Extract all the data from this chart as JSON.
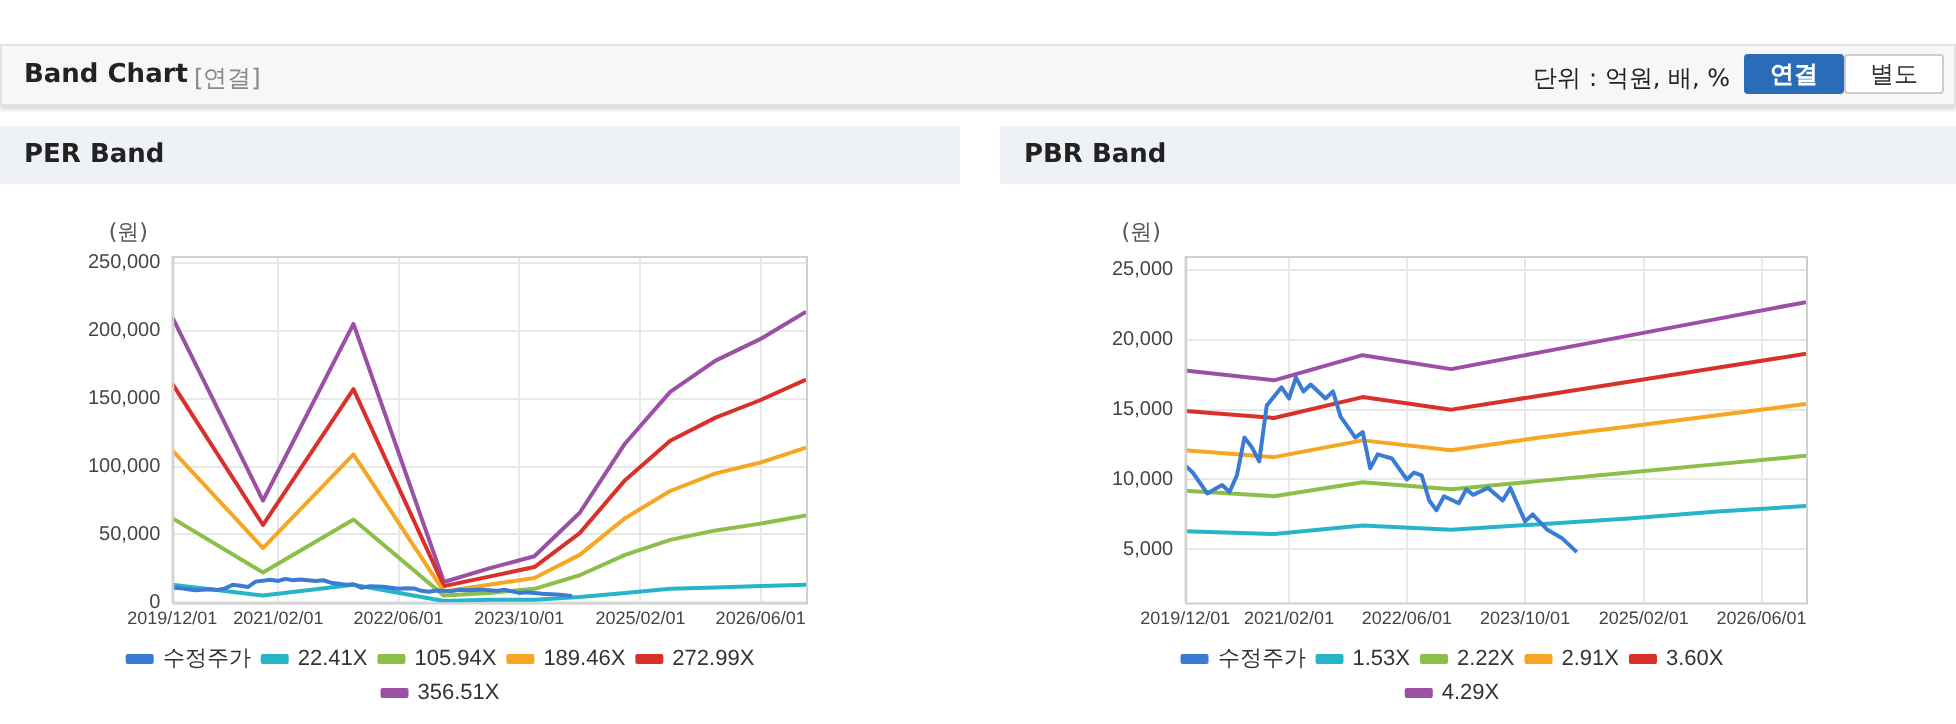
{
  "chart_data": [
    {
      "type": "line",
      "title": "PER Band",
      "ylabel": "(원)",
      "annotations": [
        "Band Chart",
        "[연결]",
        "단위 : 억원, 배, %",
        "연결",
        "별도"
      ],
      "xlim": [
        "2019-12-01",
        "2026-12-01"
      ],
      "xticks": [
        {
          "value": "2019-12-01",
          "label": "2019/12/01"
        },
        {
          "value": "2021-02-01",
          "label": "2021/02/01"
        },
        {
          "value": "2022-06-01",
          "label": "2022/06/01"
        },
        {
          "value": "2023-10-01",
          "label": "2023/10/01"
        },
        {
          "value": "2025-02-01",
          "label": "2025/02/01"
        },
        {
          "value": "2026-06-01",
          "label": "2026/06/01"
        }
      ],
      "ylim": [
        0,
        255000
      ],
      "yticks": [
        0,
        {
          "value": 50000,
          "label": "50,000"
        },
        {
          "value": 100000,
          "label": "100,000"
        },
        {
          "value": 150000,
          "label": "150,000"
        },
        {
          "value": 200000,
          "label": "200,000"
        },
        {
          "value": 250000,
          "label": "250,000"
        }
      ],
      "grid": true,
      "legend": "bottom",
      "marker": "none",
      "line_style": "solid",
      "series": [
        {
          "name": "수정주가",
          "color": "#3a7bd5",
          "x": [
            "2019-12",
            "2020-01",
            "2020-03",
            "2020-05",
            "2020-06",
            "2020-07",
            "2020-08",
            "2020-09",
            "2020-10",
            "2020-11",
            "2021-01",
            "2021-02",
            "2021-03",
            "2021-04",
            "2021-05",
            "2021-07",
            "2021-08",
            "2021-09",
            "2021-11",
            "2021-12",
            "2022-01",
            "2022-02",
            "2022-04",
            "2022-06",
            "2022-07",
            "2022-08",
            "2022-09",
            "2022-10",
            "2022-11",
            "2023-01",
            "2023-02",
            "2023-03",
            "2023-05",
            "2023-07",
            "2023-08",
            "2023-10",
            "2023-11",
            "2024-01",
            "2024-03",
            "2024-05"
          ],
          "values": [
            11000,
            10500,
            9000,
            9600,
            9100,
            10300,
            13000,
            12300,
            11300,
            15300,
            16600,
            15800,
            17300,
            16300,
            16800,
            15800,
            16300,
            14500,
            13000,
            13400,
            10800,
            11800,
            11500,
            10000,
            10500,
            10300,
            8500,
            7800,
            8800,
            8300,
            9300,
            8900,
            9400,
            8500,
            9400,
            7000,
            7500,
            6400,
            5800,
            4800
          ]
        },
        {
          "name": "22.41X",
          "color": "#26b5c8",
          "x": [
            "2019-12",
            "2020-12",
            "2021-12",
            "2022-12",
            "2023-06",
            "2023-12",
            "2024-06",
            "2024-12",
            "2025-06",
            "2025-12",
            "2026-06",
            "2026-12"
          ],
          "values": [
            13000,
            5000,
            13000,
            1000,
            2000,
            2000,
            4000,
            7000,
            10000,
            11000,
            12000,
            13000
          ]
        },
        {
          "name": "105.94X",
          "color": "#8cbf4a",
          "x": [
            "2019-12",
            "2020-12",
            "2021-12",
            "2022-12",
            "2023-06",
            "2023-12",
            "2024-06",
            "2024-12",
            "2025-06",
            "2025-12",
            "2026-06",
            "2026-12"
          ],
          "values": [
            62000,
            22000,
            61000,
            5000,
            7000,
            10000,
            20000,
            35000,
            46000,
            53000,
            58000,
            64000
          ]
        },
        {
          "name": "189.46X",
          "color": "#f5a623",
          "x": [
            "2019-12",
            "2020-12",
            "2021-12",
            "2022-12",
            "2023-06",
            "2023-12",
            "2024-06",
            "2024-12",
            "2025-06",
            "2025-12",
            "2026-06",
            "2026-12"
          ],
          "values": [
            112000,
            40000,
            109000,
            8000,
            13000,
            18000,
            35000,
            62000,
            82000,
            95000,
            103000,
            114000
          ]
        },
        {
          "name": "272.99X",
          "color": "#d9312a",
          "x": [
            "2019-12",
            "2020-12",
            "2021-12",
            "2022-12",
            "2023-06",
            "2023-12",
            "2024-06",
            "2024-12",
            "2025-06",
            "2025-12",
            "2026-06",
            "2026-12"
          ],
          "values": [
            161000,
            57000,
            157000,
            12000,
            19000,
            26000,
            51000,
            90000,
            119000,
            136000,
            149000,
            164000
          ]
        },
        {
          "name": "356.51X",
          "color": "#9b4fa5",
          "x": [
            "2019-12",
            "2020-12",
            "2021-12",
            "2022-12",
            "2023-06",
            "2023-12",
            "2024-06",
            "2024-12",
            "2025-06",
            "2025-12",
            "2026-06",
            "2026-12"
          ],
          "values": [
            210000,
            75000,
            205000,
            15000,
            25000,
            34000,
            66000,
            117000,
            155000,
            178000,
            194000,
            214000
          ]
        }
      ]
    },
    {
      "type": "line",
      "title": "PBR Band",
      "ylabel": "(원)",
      "xlim": [
        "2019-12-01",
        "2026-12-01"
      ],
      "xticks": [
        {
          "value": "2019-12-01",
          "label": "2019/12/01"
        },
        {
          "value": "2021-02-01",
          "label": "2021/02/01"
        },
        {
          "value": "2022-06-01",
          "label": "2022/06/01"
        },
        {
          "value": "2023-10-01",
          "label": "2023/10/01"
        },
        {
          "value": "2025-02-01",
          "label": "2025/02/01"
        },
        {
          "value": "2026-06-01",
          "label": "2026/06/01"
        }
      ],
      "ylim": [
        1200,
        26000
      ],
      "yticks": [
        {
          "value": 5000,
          "label": "5,000"
        },
        {
          "value": 10000,
          "label": "10,000"
        },
        {
          "value": 15000,
          "label": "15,000"
        },
        {
          "value": 20000,
          "label": "20,000"
        },
        {
          "value": 25000,
          "label": "25,000"
        }
      ],
      "grid": true,
      "legend": "bottom",
      "marker": "none",
      "line_style": "solid",
      "series": [
        {
          "name": "수정주가",
          "color": "#3a7bd5",
          "x": [
            "2019-12",
            "2020-01",
            "2020-03",
            "2020-05",
            "2020-06",
            "2020-07",
            "2020-08",
            "2020-09",
            "2020-10",
            "2020-11",
            "2021-01",
            "2021-02",
            "2021-03",
            "2021-04",
            "2021-05",
            "2021-07",
            "2021-08",
            "2021-09",
            "2021-11",
            "2021-12",
            "2022-01",
            "2022-02",
            "2022-04",
            "2022-06",
            "2022-07",
            "2022-08",
            "2022-09",
            "2022-10",
            "2022-11",
            "2023-01",
            "2023-02",
            "2023-03",
            "2023-05",
            "2023-07",
            "2023-08",
            "2023-10",
            "2023-11",
            "2024-01",
            "2024-03",
            "2024-05"
          ],
          "values": [
            11000,
            10500,
            9000,
            9600,
            9100,
            10300,
            13000,
            12300,
            11300,
            15300,
            16600,
            15800,
            17300,
            16300,
            16800,
            15800,
            16300,
            14500,
            13000,
            13400,
            10800,
            11800,
            11500,
            10000,
            10500,
            10300,
            8500,
            7800,
            8800,
            8300,
            9300,
            8900,
            9400,
            8500,
            9400,
            7000,
            7500,
            6400,
            5800,
            4800
          ]
        },
        {
          "name": "1.53X",
          "color": "#26b5c8",
          "x": [
            "2019-12",
            "2020-12",
            "2021-12",
            "2022-12",
            "2023-12",
            "2024-12",
            "2025-12",
            "2026-12"
          ],
          "values": [
            6300,
            6100,
            6700,
            6400,
            6800,
            7200,
            7700,
            8100
          ]
        },
        {
          "name": "2.22X",
          "color": "#8cbf4a",
          "x": [
            "2019-12",
            "2020-12",
            "2021-12",
            "2022-12",
            "2023-12",
            "2024-12",
            "2025-12",
            "2026-12"
          ],
          "values": [
            9200,
            8800,
            9800,
            9300,
            9900,
            10500,
            11100,
            11700
          ]
        },
        {
          "name": "2.91X",
          "color": "#f5a623",
          "x": [
            "2019-12",
            "2020-12",
            "2021-12",
            "2022-12",
            "2023-12",
            "2024-12",
            "2025-12",
            "2026-12"
          ],
          "values": [
            12100,
            11600,
            12800,
            12100,
            13000,
            13800,
            14600,
            15400
          ]
        },
        {
          "name": "3.60X",
          "color": "#d9312a",
          "x": [
            "2019-12",
            "2020-12",
            "2021-12",
            "2022-12",
            "2023-12",
            "2024-12",
            "2025-12",
            "2026-12"
          ],
          "values": [
            14900,
            14400,
            15900,
            15000,
            16000,
            17000,
            18000,
            19000
          ]
        },
        {
          "name": "4.29X",
          "color": "#9b4fa5",
          "x": [
            "2019-12",
            "2020-12",
            "2021-12",
            "2022-12",
            "2023-12",
            "2024-12",
            "2025-12",
            "2026-12"
          ],
          "values": [
            17800,
            17100,
            18900,
            17900,
            19100,
            20300,
            21500,
            22700
          ]
        }
      ]
    }
  ]
}
